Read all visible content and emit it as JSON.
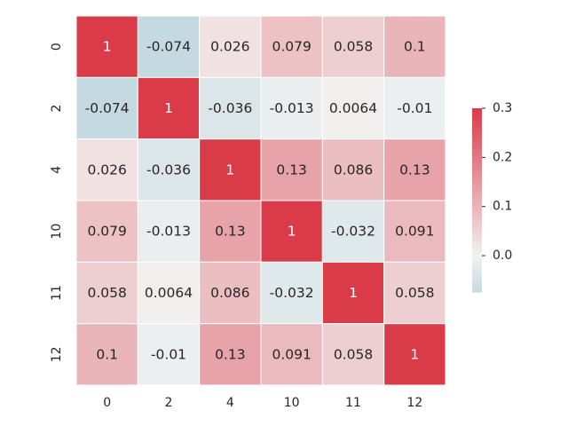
{
  "chart_data": {
    "type": "heatmap",
    "row_labels": [
      "0",
      "2",
      "4",
      "10",
      "11",
      "12"
    ],
    "col_labels": [
      "0",
      "2",
      "4",
      "10",
      "11",
      "12"
    ],
    "values": [
      [
        1,
        -0.074,
        0.026,
        0.079,
        0.058,
        0.1
      ],
      [
        -0.074,
        1,
        -0.036,
        -0.013,
        0.0064,
        -0.01
      ],
      [
        0.026,
        -0.036,
        1,
        0.13,
        0.086,
        0.13
      ],
      [
        0.079,
        -0.013,
        0.13,
        1,
        -0.032,
        0.091
      ],
      [
        0.058,
        0.0064,
        0.086,
        -0.032,
        1,
        0.058
      ],
      [
        0.1,
        -0.01,
        0.13,
        0.091,
        0.058,
        1
      ]
    ],
    "value_labels": [
      [
        "1",
        "-0.074",
        "0.026",
        "0.079",
        "0.058",
        "0.1"
      ],
      [
        "-0.074",
        "1",
        "-0.036",
        "-0.013",
        "0.0064",
        "-0.01"
      ],
      [
        "0.026",
        "-0.036",
        "1",
        "0.13",
        "0.086",
        "0.13"
      ],
      [
        "0.079",
        "-0.013",
        "0.13",
        "1",
        "-0.032",
        "0.091"
      ],
      [
        "0.058",
        "0.0064",
        "0.086",
        "-0.032",
        "1",
        "0.058"
      ],
      [
        "0.1",
        "-0.01",
        "0.13",
        "0.091",
        "0.058",
        "1"
      ]
    ],
    "colorbar": {
      "vmin": -0.074,
      "vmax": 0.3,
      "ticks": [
        0.0,
        0.1,
        0.2,
        0.3
      ],
      "tick_labels": [
        "0.0",
        "0.1",
        "0.2",
        "0.3"
      ]
    },
    "colormap": {
      "low": "#c5dae0",
      "mid": "#f2f2f2",
      "high": "#da3b48"
    },
    "title": "",
    "xlabel": "",
    "ylabel": ""
  }
}
